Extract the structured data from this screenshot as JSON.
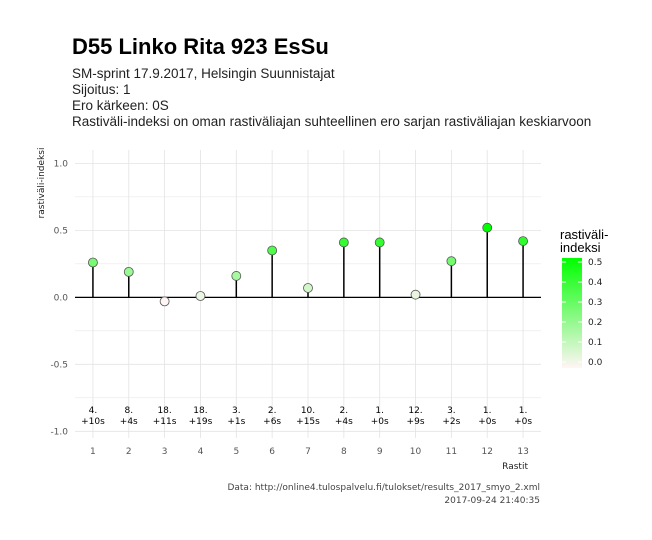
{
  "chart_data": {
    "type": "lollipop",
    "title": "D55 Linko Rita 923 EsSu",
    "subtitle_lines": [
      "SM-sprint 17.9.2017, Helsingin Suunnistajat",
      "Sijoitus: 1",
      "Ero kärkeen: 0S",
      "Rastiväli-indeksi on oman rastiväliajan suhteellinen ero sarjan rastiväliajan keskiarvoon"
    ],
    "xlabel": "Rastit",
    "ylabel": "rastiväli-indeksi",
    "ylim": [
      -1.05,
      1.1
    ],
    "yticks": [
      -1.0,
      -0.5,
      0.0,
      0.5,
      1.0
    ],
    "ytick_labels": [
      "-1.0",
      "-0.5",
      "0.0",
      "0.5",
      "1.0"
    ],
    "x": [
      1,
      2,
      3,
      4,
      5,
      6,
      7,
      8,
      9,
      10,
      11,
      12,
      13
    ],
    "values": [
      0.26,
      0.19,
      -0.03,
      0.01,
      0.16,
      0.35,
      0.07,
      0.41,
      0.41,
      0.02,
      0.27,
      0.52,
      0.42
    ],
    "ranks": [
      "4.",
      "8.",
      "18.",
      "18.",
      "3.",
      "2.",
      "10.",
      "2.",
      "1.",
      "12.",
      "3.",
      "1.",
      "1."
    ],
    "diffs": [
      "+10s",
      "+4s",
      "+11s",
      "+19s",
      "+1s",
      "+6s",
      "+15s",
      "+4s",
      "+0s",
      "+9s",
      "+2s",
      "+0s",
      "+0s"
    ],
    "annotation_y": -0.9,
    "grid": true,
    "legend": {
      "title_lines": [
        "rastiväli-",
        "indeksi"
      ],
      "ticks": [
        "0.0",
        "0.1",
        "0.2",
        "0.3",
        "0.4",
        "0.5"
      ],
      "tick_values": [
        0.0,
        0.1,
        0.2,
        0.3,
        0.4,
        0.5
      ],
      "range": [
        -0.03,
        0.52
      ],
      "placement": "right"
    },
    "colors": {
      "low": "#fff5f5",
      "high": "#00ff00",
      "grid": "#e3e3e3",
      "zero_line": "#000000"
    },
    "caption_lines": [
      "Data: http://online4.tulospalvelu.fi/tulokset/results_2017_smyo_2.xml",
      "2017-09-24 21:40:35"
    ]
  }
}
